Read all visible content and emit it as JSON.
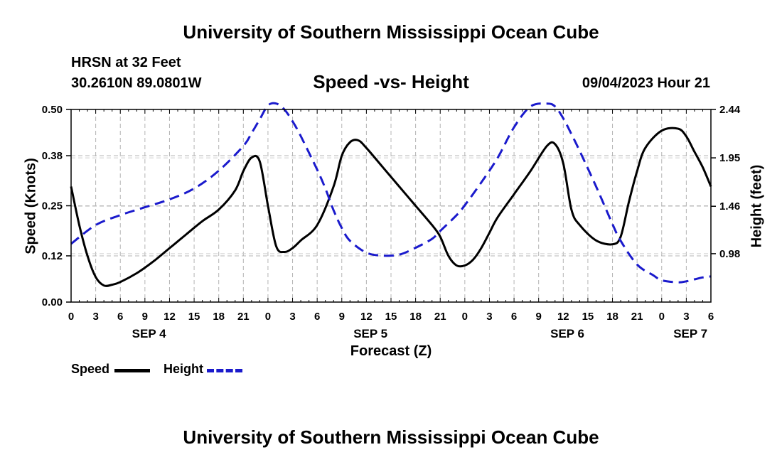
{
  "page": {
    "top_title": "University of Southern Mississippi Ocean Cube",
    "bottom_title": "University of Southern Mississippi Ocean Cube",
    "station": "HRSN at 32 Feet",
    "location": "30.2610N  89.0801W",
    "timestamp": "09/04/2023 Hour 21"
  },
  "legend": {
    "speed_label": "Speed",
    "height_label": "Height",
    "speed_color": "#000000",
    "height_color": "#1a1acc"
  },
  "chart_data": {
    "type": "line",
    "title": "Speed -vs- Height",
    "xlabel": "Forecast (Z)",
    "ylabel": "Speed (Knots)",
    "y2label": "Height (feet)",
    "x_range_hours": [
      0,
      78
    ],
    "ylim": [
      0,
      0.5
    ],
    "y2lim": [
      0.49,
      2.44
    ],
    "yticks": [
      0.0,
      0.12,
      0.25,
      0.38,
      0.5
    ],
    "ytick_labels": [
      "0.00",
      "0.12",
      "0.25",
      "0.38",
      "0.50"
    ],
    "y2ticks": [
      0.98,
      1.46,
      1.95,
      2.44
    ],
    "y2tick_labels": [
      "0.98",
      "1.46",
      "1.95",
      "2.44"
    ],
    "xticks": [
      0,
      3,
      6,
      9,
      12,
      15,
      18,
      21,
      24,
      27,
      30,
      33,
      36,
      39,
      42,
      45,
      48,
      51,
      54,
      57,
      60,
      63,
      66,
      69,
      72,
      75,
      78
    ],
    "xtick_labels": [
      "0",
      "3",
      "6",
      "9",
      "12",
      "15",
      "18",
      "21",
      "0",
      "3",
      "6",
      "9",
      "12",
      "15",
      "18",
      "21",
      "0",
      "3",
      "6",
      "9",
      "12",
      "15",
      "18",
      "21",
      "0",
      "3",
      "6"
    ],
    "date_labels": [
      {
        "label": "SEP 4",
        "hour": 9.5
      },
      {
        "label": "SEP 5",
        "hour": 36.5
      },
      {
        "label": "SEP 6",
        "hour": 60.5
      },
      {
        "label": "SEP 7",
        "hour": 75.5
      }
    ],
    "grid": true,
    "legend_position": "bottom-left",
    "series": [
      {
        "name": "Speed",
        "axis": "left",
        "color": "#000000",
        "style": "solid",
        "x": [
          0,
          1,
          2,
          3,
          4,
          5,
          6,
          8,
          10,
          12,
          14,
          16,
          18,
          20,
          21,
          22,
          23,
          24,
          25,
          26,
          27,
          28,
          30,
          32,
          33,
          34,
          35,
          36,
          38,
          40,
          42,
          44,
          45,
          46,
          47,
          48,
          49,
          50,
          51,
          52,
          54,
          56,
          58,
          59,
          60,
          61,
          62,
          64,
          66,
          67,
          68,
          69,
          70,
          72,
          74,
          75,
          76,
          77,
          78
        ],
        "y": [
          0.3,
          0.2,
          0.12,
          0.065,
          0.043,
          0.045,
          0.052,
          0.075,
          0.105,
          0.14,
          0.175,
          0.21,
          0.24,
          0.29,
          0.34,
          0.375,
          0.365,
          0.25,
          0.145,
          0.13,
          0.14,
          0.16,
          0.2,
          0.3,
          0.38,
          0.415,
          0.42,
          0.4,
          0.35,
          0.3,
          0.25,
          0.2,
          0.17,
          0.12,
          0.095,
          0.095,
          0.11,
          0.14,
          0.18,
          0.22,
          0.28,
          0.34,
          0.405,
          0.41,
          0.36,
          0.24,
          0.2,
          0.16,
          0.15,
          0.17,
          0.26,
          0.34,
          0.4,
          0.445,
          0.45,
          0.43,
          0.39,
          0.35,
          0.3
        ]
      },
      {
        "name": "Height",
        "axis": "right",
        "color": "#1a1acc",
        "style": "dashed",
        "x": [
          0,
          3,
          6,
          9,
          12,
          15,
          18,
          21,
          22,
          23,
          24,
          25,
          26,
          27,
          28,
          30,
          31,
          32,
          33,
          34,
          36,
          38,
          40,
          42,
          44,
          45,
          47,
          48,
          50,
          52,
          54,
          56,
          58,
          59,
          60,
          61,
          62,
          64,
          66,
          67,
          69,
          71,
          72,
          74,
          75,
          76,
          77,
          78
        ],
        "y": [
          1.08,
          1.27,
          1.37,
          1.45,
          1.53,
          1.64,
          1.82,
          2.07,
          2.2,
          2.34,
          2.48,
          2.5,
          2.44,
          2.32,
          2.17,
          1.83,
          1.64,
          1.42,
          1.24,
          1.11,
          0.99,
          0.96,
          0.97,
          1.04,
          1.13,
          1.21,
          1.37,
          1.47,
          1.7,
          1.95,
          2.26,
          2.47,
          2.5,
          2.47,
          2.35,
          2.19,
          2.02,
          1.66,
          1.28,
          1.11,
          0.87,
          0.76,
          0.71,
          0.69,
          0.7,
          0.72,
          0.74,
          0.75
        ]
      }
    ]
  }
}
